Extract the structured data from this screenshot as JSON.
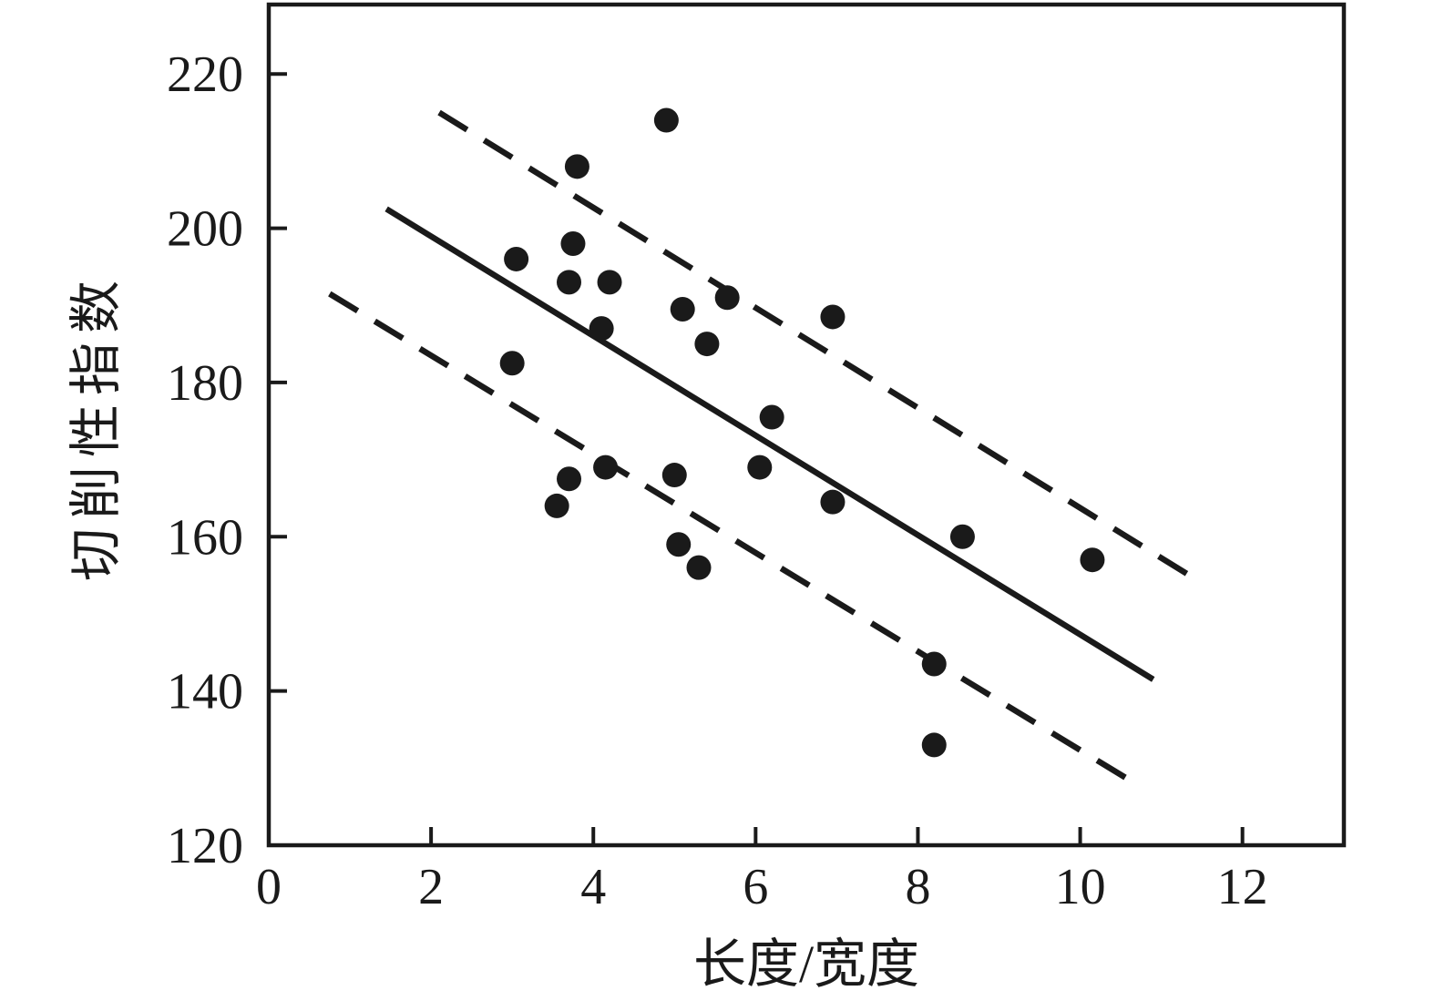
{
  "figure": {
    "background": "#ffffff",
    "ink_color": "#1a1a1a"
  },
  "chart_data": {
    "type": "scatter",
    "title": "",
    "xlabel": "长度/宽度",
    "ylabel": "切削性指数",
    "xlim": [
      0,
      13.25
    ],
    "ylim": [
      120,
      229
    ],
    "x_ticks": [
      0,
      2,
      4,
      6,
      8,
      10,
      12
    ],
    "x_tick_labels": [
      "0",
      "2",
      "4",
      "6",
      "8",
      "10",
      "12"
    ],
    "y_ticks": [
      120,
      140,
      160,
      180,
      200,
      220
    ],
    "y_tick_labels": [
      "120",
      "140",
      "160",
      "180",
      "200",
      "220"
    ],
    "grid": false,
    "legend": null,
    "marker": {
      "shape": "circle",
      "color": "#1a1a1a"
    },
    "points": [
      [
        4.9,
        214
      ],
      [
        3.8,
        208
      ],
      [
        3.75,
        198
      ],
      [
        3.05,
        196
      ],
      [
        3.7,
        193
      ],
      [
        4.2,
        193
      ],
      [
        5.65,
        191
      ],
      [
        5.1,
        189.5
      ],
      [
        6.95,
        188.5
      ],
      [
        4.1,
        187
      ],
      [
        5.4,
        185
      ],
      [
        3.0,
        182.5
      ],
      [
        6.2,
        175.5
      ],
      [
        4.15,
        169
      ],
      [
        6.05,
        169
      ],
      [
        5.0,
        168
      ],
      [
        3.7,
        167.5
      ],
      [
        3.55,
        164
      ],
      [
        6.95,
        164.5
      ],
      [
        5.05,
        159
      ],
      [
        8.55,
        160
      ],
      [
        5.3,
        156
      ],
      [
        10.15,
        157
      ],
      [
        8.2,
        143.5
      ],
      [
        8.2,
        133
      ]
    ],
    "regression_line": {
      "style": "solid",
      "x1": 1.45,
      "y1": 202.5,
      "x2": 10.9,
      "y2": 141.5,
      "slope_approx": -6.5
    },
    "confidence_band": {
      "upper": {
        "style": "dashed",
        "x1": 2.1,
        "y1": 215,
        "x2": 11.5,
        "y2": 154
      },
      "lower": {
        "style": "dashed",
        "x1": 0.75,
        "y1": 191.5,
        "x2": 10.6,
        "y2": 128.5
      }
    }
  }
}
